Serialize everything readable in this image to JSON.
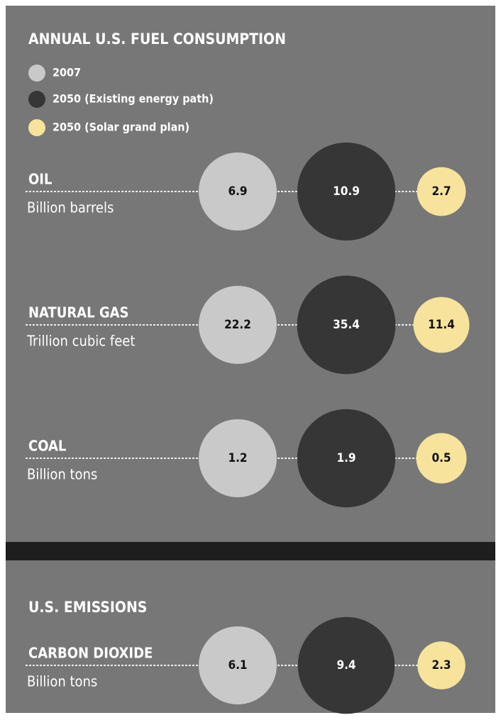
{
  "chart_data": [
    {
      "type": "bubble",
      "title": "ANNUAL U.S. FUEL CONSUMPTION",
      "categories": [
        "OIL",
        "NATURAL GAS",
        "COAL"
      ],
      "units": [
        "Billion barrels",
        "Trillion cubic feet",
        "Billion tons"
      ],
      "series": [
        {
          "name": "2007",
          "color": "#c9c9c9",
          "values": [
            6.9,
            22.2,
            1.2
          ]
        },
        {
          "name": "2050 (Existing energy path)",
          "color": "#363636",
          "values": [
            10.9,
            35.4,
            1.9
          ]
        },
        {
          "name": "2050 (Solar grand plan)",
          "color": "#f7e39c",
          "values": [
            2.7,
            11.4,
            0.5
          ]
        }
      ]
    },
    {
      "type": "bubble",
      "title": "U.S. EMISSIONS",
      "categories": [
        "CARBON DIOXIDE"
      ],
      "units": [
        "Billion tons"
      ],
      "series": [
        {
          "color": "#c9c9c9",
          "values": [
            6.1
          ]
        },
        {
          "color": "#363636",
          "values": [
            9.4
          ]
        },
        {
          "color": "#f7e39c",
          "values": [
            2.3
          ]
        }
      ]
    }
  ]
}
